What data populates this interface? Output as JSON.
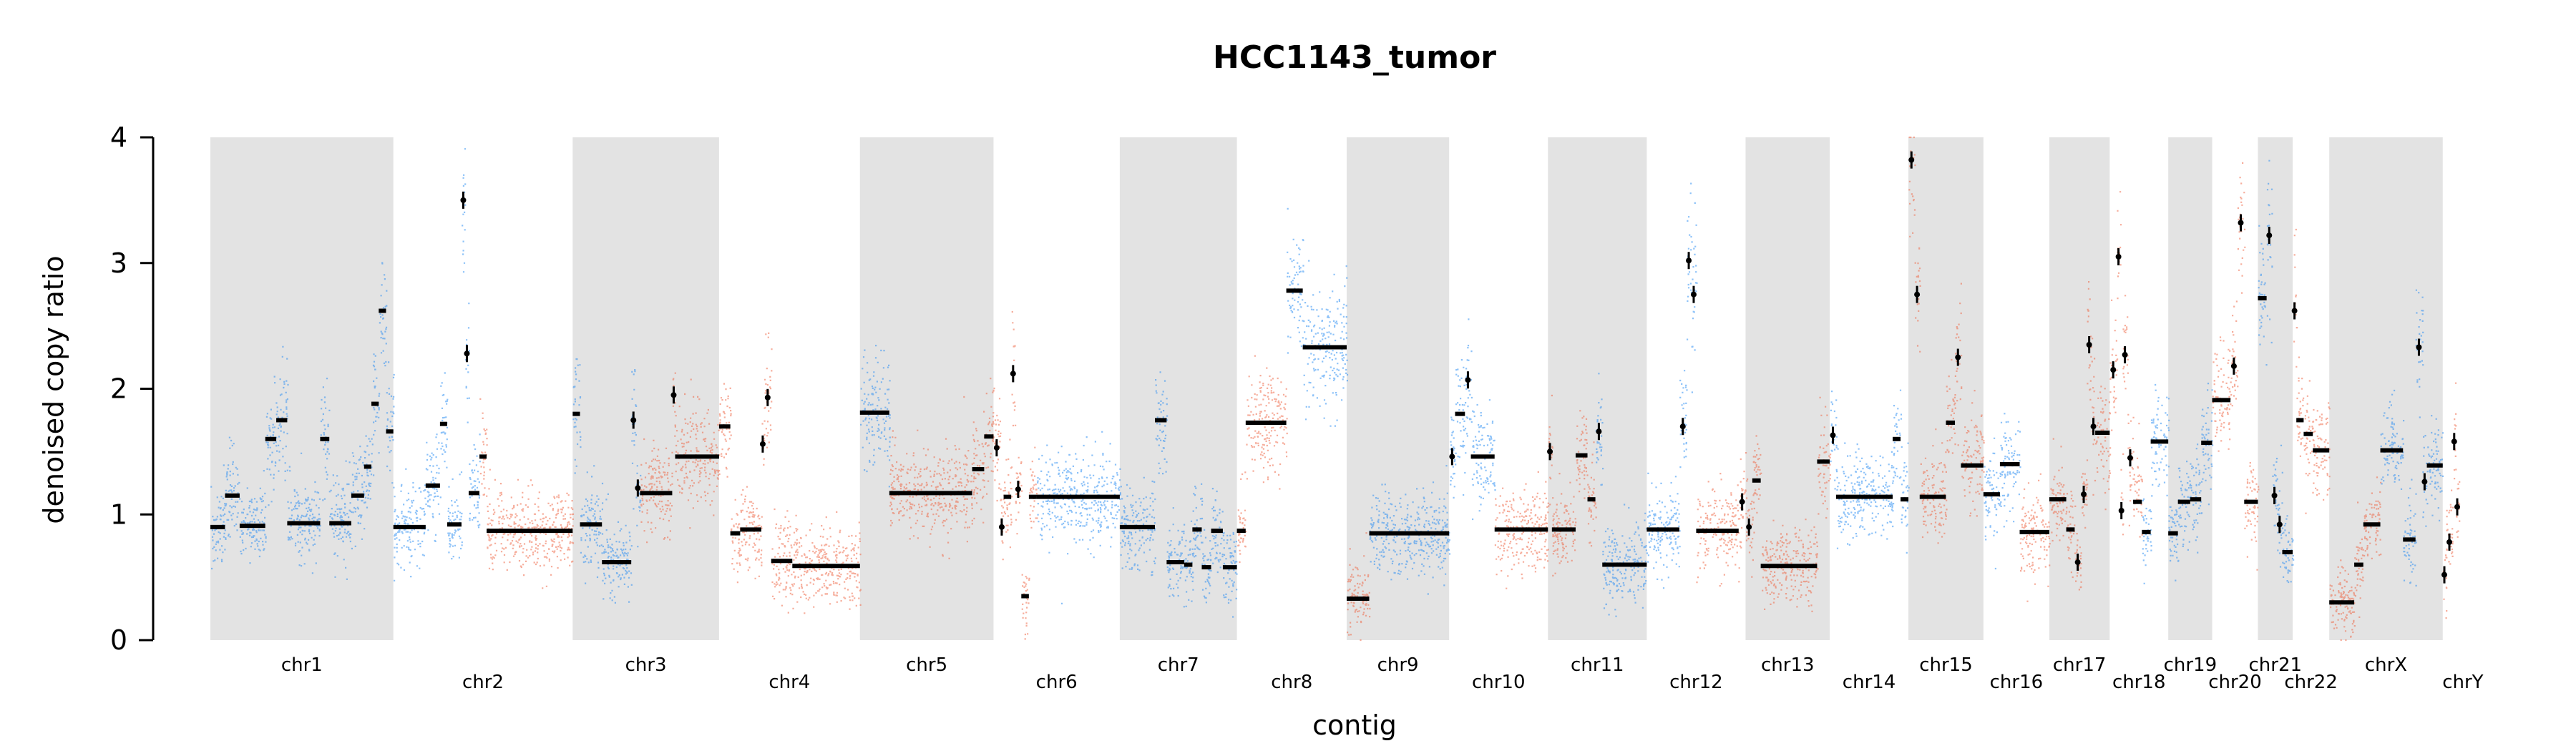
{
  "chart_data": {
    "type": "scatter",
    "title": "HCC1143_tumor",
    "xlabel": "contig",
    "ylabel": "denoised copy ratio",
    "ylim": [
      0,
      4
    ],
    "yticks": [
      "0",
      "1",
      "2",
      "3",
      "4"
    ],
    "grid": false,
    "legend": "none",
    "colors": {
      "series_a": "#2f8ff3",
      "series_b": "#ef6a48",
      "contig_shade": "#e3e3e3",
      "segment": "#000000"
    },
    "contigs": [
      {
        "name": "chr1",
        "shaded": true,
        "color": "blue",
        "segments": [
          [
            0.0,
            0.08,
            0.9
          ],
          [
            0.08,
            0.16,
            1.15
          ],
          [
            0.16,
            0.3,
            0.91
          ],
          [
            0.3,
            0.36,
            1.6
          ],
          [
            0.36,
            0.42,
            1.75
          ],
          [
            0.42,
            0.6,
            0.93
          ],
          [
            0.6,
            0.65,
            1.6
          ],
          [
            0.65,
            0.77,
            0.93
          ],
          [
            0.77,
            0.84,
            1.15
          ],
          [
            0.84,
            0.88,
            1.38
          ],
          [
            0.88,
            0.92,
            1.88
          ],
          [
            0.92,
            0.96,
            2.62
          ],
          [
            0.96,
            1.0,
            1.66
          ]
        ]
      },
      {
        "name": "chr2",
        "shaded": false,
        "color": "blue_then_orange",
        "segments": [
          [
            0.0,
            0.18,
            0.9
          ],
          [
            0.18,
            0.26,
            1.23
          ],
          [
            0.26,
            0.3,
            1.72
          ],
          [
            0.3,
            0.38,
            0.92
          ],
          [
            0.38,
            0.4,
            3.5
          ],
          [
            0.4,
            0.42,
            2.28
          ],
          [
            0.42,
            0.48,
            1.17
          ],
          [
            0.48,
            0.52,
            1.46
          ],
          [
            0.52,
            1.0,
            0.87
          ]
        ]
      },
      {
        "name": "chr3",
        "shaded": true,
        "color": "blue_then_orange",
        "segments": [
          [
            0.0,
            0.05,
            1.8
          ],
          [
            0.05,
            0.2,
            0.92
          ],
          [
            0.2,
            0.4,
            0.62
          ],
          [
            0.4,
            0.43,
            1.75
          ],
          [
            0.43,
            0.46,
            1.21
          ],
          [
            0.46,
            0.68,
            1.17
          ],
          [
            0.68,
            0.7,
            1.95
          ],
          [
            0.7,
            1.0,
            1.46
          ]
        ]
      },
      {
        "name": "chr4",
        "shaded": false,
        "color": "orange",
        "segments": [
          [
            0.0,
            0.08,
            1.7
          ],
          [
            0.08,
            0.15,
            0.85
          ],
          [
            0.15,
            0.3,
            0.88
          ],
          [
            0.3,
            0.32,
            1.56
          ],
          [
            0.32,
            0.37,
            1.93
          ],
          [
            0.37,
            0.52,
            0.63
          ],
          [
            0.52,
            1.0,
            0.59
          ]
        ]
      },
      {
        "name": "chr5",
        "shaded": true,
        "color": "blue_then_orange",
        "segments": [
          [
            0.0,
            0.22,
            1.81
          ],
          [
            0.22,
            0.84,
            1.17
          ],
          [
            0.84,
            0.93,
            1.36
          ],
          [
            0.93,
            1.0,
            1.62
          ]
        ]
      },
      {
        "name": "chr6",
        "shaded": false,
        "color": "orange_then_blue",
        "segments": [
          [
            0.0,
            0.05,
            1.53
          ],
          [
            0.05,
            0.08,
            0.9
          ],
          [
            0.08,
            0.14,
            1.14
          ],
          [
            0.14,
            0.17,
            2.12
          ],
          [
            0.17,
            0.22,
            1.2
          ],
          [
            0.22,
            0.28,
            0.35
          ],
          [
            0.28,
            0.34,
            1.14
          ],
          [
            0.34,
            1.0,
            1.14
          ]
        ]
      },
      {
        "name": "chr7",
        "shaded": true,
        "color": "blue",
        "segments": [
          [
            0.0,
            0.3,
            0.9
          ],
          [
            0.3,
            0.4,
            1.75
          ],
          [
            0.4,
            0.55,
            0.62
          ],
          [
            0.55,
            0.62,
            0.6
          ],
          [
            0.62,
            0.7,
            0.88
          ],
          [
            0.7,
            0.78,
            0.58
          ],
          [
            0.78,
            0.88,
            0.87
          ],
          [
            0.88,
            1.0,
            0.58
          ]
        ]
      },
      {
        "name": "chr8",
        "shaded": false,
        "color": "orange_then_blue",
        "segments": [
          [
            0.0,
            0.08,
            0.87
          ],
          [
            0.08,
            0.45,
            1.73
          ],
          [
            0.45,
            0.6,
            2.78
          ],
          [
            0.6,
            1.0,
            2.33
          ]
        ]
      },
      {
        "name": "chr9",
        "shaded": true,
        "color": "orange_then_blue",
        "segments": [
          [
            0.0,
            0.22,
            0.33
          ],
          [
            0.22,
            1.0,
            0.85
          ]
        ]
      },
      {
        "name": "chr10",
        "shaded": false,
        "color": "blue_then_orange",
        "segments": [
          [
            0.0,
            0.06,
            1.46
          ],
          [
            0.06,
            0.16,
            1.8
          ],
          [
            0.16,
            0.22,
            2.07
          ],
          [
            0.22,
            0.46,
            1.46
          ],
          [
            0.46,
            1.0,
            0.88
          ]
        ]
      },
      {
        "name": "chr11",
        "shaded": true,
        "color": "orange_then_blue",
        "segments": [
          [
            0.0,
            0.04,
            1.5
          ],
          [
            0.04,
            0.28,
            0.88
          ],
          [
            0.28,
            0.4,
            1.47
          ],
          [
            0.4,
            0.48,
            1.12
          ],
          [
            0.48,
            0.55,
            1.66
          ],
          [
            0.55,
            1.0,
            0.6
          ]
        ]
      },
      {
        "name": "chr12",
        "shaded": false,
        "color": "blue_then_orange",
        "segments": [
          [
            0.0,
            0.33,
            0.88
          ],
          [
            0.33,
            0.4,
            1.7
          ],
          [
            0.4,
            0.45,
            3.02
          ],
          [
            0.45,
            0.5,
            2.75
          ],
          [
            0.5,
            0.93,
            0.87
          ],
          [
            0.93,
            1.0,
            1.1
          ]
        ]
      },
      {
        "name": "chr13",
        "shaded": true,
        "color": "orange",
        "segments": [
          [
            0.0,
            0.08,
            0.9
          ],
          [
            0.08,
            0.18,
            1.27
          ],
          [
            0.18,
            0.85,
            0.59
          ],
          [
            0.85,
            1.0,
            1.42
          ]
        ]
      },
      {
        "name": "chr14",
        "shaded": false,
        "color": "blue",
        "segments": [
          [
            0.0,
            0.08,
            1.63
          ],
          [
            0.08,
            0.8,
            1.14
          ],
          [
            0.8,
            0.9,
            1.6
          ],
          [
            0.9,
            1.0,
            1.12
          ]
        ]
      },
      {
        "name": "chr15",
        "shaded": true,
        "color": "orange",
        "segments": [
          [
            0.0,
            0.08,
            3.82
          ],
          [
            0.08,
            0.15,
            2.75
          ],
          [
            0.15,
            0.5,
            1.14
          ],
          [
            0.5,
            0.62,
            1.73
          ],
          [
            0.62,
            0.7,
            2.25
          ],
          [
            0.7,
            1.0,
            1.39
          ]
        ]
      },
      {
        "name": "chr16",
        "shaded": false,
        "color": "blue_then_orange",
        "segments": [
          [
            0.0,
            0.25,
            1.16
          ],
          [
            0.25,
            0.55,
            1.4
          ],
          [
            0.55,
            1.0,
            0.86
          ]
        ]
      },
      {
        "name": "chr17",
        "shaded": true,
        "color": "orange",
        "segments": [
          [
            0.0,
            0.28,
            1.12
          ],
          [
            0.28,
            0.42,
            0.88
          ],
          [
            0.42,
            0.52,
            0.62
          ],
          [
            0.52,
            0.62,
            1.16
          ],
          [
            0.62,
            0.7,
            2.35
          ],
          [
            0.7,
            0.76,
            1.7
          ],
          [
            0.76,
            1.0,
            1.65
          ]
        ]
      },
      {
        "name": "chr18",
        "shaded": false,
        "color": "orange_then_blue",
        "segments": [
          [
            0.0,
            0.12,
            2.15
          ],
          [
            0.12,
            0.18,
            3.05
          ],
          [
            0.18,
            0.22,
            1.03
          ],
          [
            0.22,
            0.3,
            2.27
          ],
          [
            0.3,
            0.4,
            1.45
          ],
          [
            0.4,
            0.55,
            1.1
          ],
          [
            0.55,
            0.7,
            0.86
          ],
          [
            0.7,
            1.0,
            1.58
          ]
        ]
      },
      {
        "name": "chr19",
        "shaded": true,
        "color": "blue",
        "segments": [
          [
            0.0,
            0.22,
            0.85
          ],
          [
            0.22,
            0.5,
            1.1
          ],
          [
            0.5,
            0.75,
            1.12
          ],
          [
            0.75,
            1.0,
            1.57
          ]
        ]
      },
      {
        "name": "chr20",
        "shaded": false,
        "color": "orange",
        "segments": [
          [
            0.0,
            0.4,
            1.91
          ],
          [
            0.4,
            0.55,
            2.18
          ],
          [
            0.55,
            0.7,
            3.32
          ],
          [
            0.7,
            1.0,
            1.1
          ]
        ]
      },
      {
        "name": "chr21",
        "shaded": true,
        "color": "blue",
        "segments": [
          [
            0.0,
            0.25,
            2.72
          ],
          [
            0.25,
            0.4,
            3.22
          ],
          [
            0.4,
            0.55,
            1.15
          ],
          [
            0.55,
            0.7,
            0.92
          ],
          [
            0.7,
            1.0,
            0.7
          ]
        ]
      },
      {
        "name": "chr22",
        "shaded": false,
        "color": "orange",
        "segments": [
          [
            0.0,
            0.1,
            2.62
          ],
          [
            0.1,
            0.3,
            1.75
          ],
          [
            0.3,
            0.55,
            1.64
          ],
          [
            0.55,
            1.0,
            1.51
          ]
        ]
      },
      {
        "name": "chrX",
        "shaded": true,
        "color": "orange_then_blue",
        "segments": [
          [
            0.0,
            0.22,
            0.3
          ],
          [
            0.22,
            0.3,
            0.6
          ],
          [
            0.3,
            0.45,
            0.92
          ],
          [
            0.45,
            0.65,
            1.51
          ],
          [
            0.65,
            0.76,
            0.8
          ],
          [
            0.76,
            0.82,
            2.33
          ],
          [
            0.82,
            0.86,
            1.26
          ],
          [
            0.86,
            1.0,
            1.39
          ]
        ]
      },
      {
        "name": "chrY",
        "shaded": false,
        "color": "orange",
        "segments": [
          [
            0.0,
            0.08,
            0.52
          ],
          [
            0.08,
            0.25,
            0.78
          ],
          [
            0.25,
            0.32,
            1.58
          ],
          [
            0.32,
            0.4,
            1.06
          ]
        ]
      }
    ]
  }
}
